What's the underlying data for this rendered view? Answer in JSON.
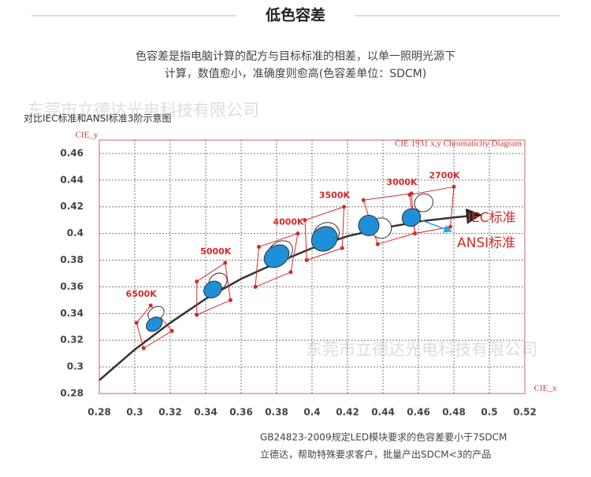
{
  "header": {
    "title": "低色容差",
    "intro": [
      "色容差是指电脑计算的配方与目标标准的相差，以单一照明光源下",
      "计算，数值愈小，准确度则愈高(色容差单位：SDCM)"
    ]
  },
  "watermark": "东莞市立德达光电科技有限公司",
  "chart_data": {
    "type": "scatter",
    "subtitle": "对比IEC标准和ANSI标准3阶示意图",
    "title": "CIE  1931  x,y Chromaticity Diagram",
    "xlabel": "CIE_x",
    "ylabel": "CIE_y",
    "xlim": [
      0.28,
      0.52
    ],
    "ylim": [
      0.28,
      0.47
    ],
    "xticks": [
      0.28,
      0.3,
      0.32,
      0.34,
      0.36,
      0.38,
      0.4,
      0.42,
      0.44,
      0.46,
      0.48,
      0.5,
      0.52
    ],
    "yticks": [
      0.28,
      0.3,
      0.32,
      0.34,
      0.36,
      0.38,
      0.4,
      0.42,
      0.44,
      0.46
    ],
    "grid": true,
    "curve": {
      "color": "#333333",
      "x": [
        0.28,
        0.3,
        0.32,
        0.34,
        0.36,
        0.38,
        0.4,
        0.42,
        0.44,
        0.46,
        0.48,
        0.495
      ],
      "y": [
        0.29,
        0.313,
        0.333,
        0.351,
        0.366,
        0.378,
        0.389,
        0.398,
        0.404,
        0.409,
        0.412,
        0.414
      ]
    },
    "series": [
      {
        "name": "ANSI标准",
        "color": "#ffffff",
        "x": [
          0.312,
          0.347,
          0.382,
          0.408,
          0.439,
          0.463
        ],
        "y": [
          0.34,
          0.364,
          0.386,
          0.399,
          0.404,
          0.423
        ]
      },
      {
        "name": "IEC标准",
        "color": "#1f8fd8",
        "x": [
          0.311,
          0.344,
          0.38,
          0.407,
          0.432,
          0.456
        ],
        "y": [
          0.332,
          0.358,
          0.383,
          0.396,
          0.406,
          0.412
        ]
      }
    ],
    "quads": [
      {
        "label": "6500K",
        "x": [
          0.301,
          0.309,
          0.321,
          0.305
        ],
        "y": [
          0.333,
          0.346,
          0.327,
          0.314
        ]
      },
      {
        "label": "5000K",
        "x": [
          0.335,
          0.351,
          0.354,
          0.335
        ],
        "y": [
          0.364,
          0.378,
          0.35,
          0.339
        ]
      },
      {
        "label": "4000K",
        "x": [
          0.37,
          0.392,
          0.388,
          0.368
        ],
        "y": [
          0.39,
          0.4,
          0.371,
          0.36
        ]
      },
      {
        "label": "3500K",
        "x": [
          0.396,
          0.418,
          0.417,
          0.397
        ],
        "y": [
          0.41,
          0.42,
          0.389,
          0.38
        ]
      },
      {
        "label": "3000K",
        "x": [
          0.429,
          0.456,
          0.458,
          0.437
        ],
        "y": [
          0.425,
          0.43,
          0.4,
          0.392
        ]
      },
      {
        "label": "2700K",
        "x": [
          0.455,
          0.48,
          0.478,
          0.458
        ],
        "y": [
          0.429,
          0.435,
          0.405,
          0.4
        ]
      }
    ],
    "quad_color": "#d42a2a"
  },
  "footer": [
    "GB24823-2009规定LED模块要求的色容差要小于7SDCM",
    "立德达，帮助特殊要求客户，批量产出SDCM<3的产品"
  ]
}
